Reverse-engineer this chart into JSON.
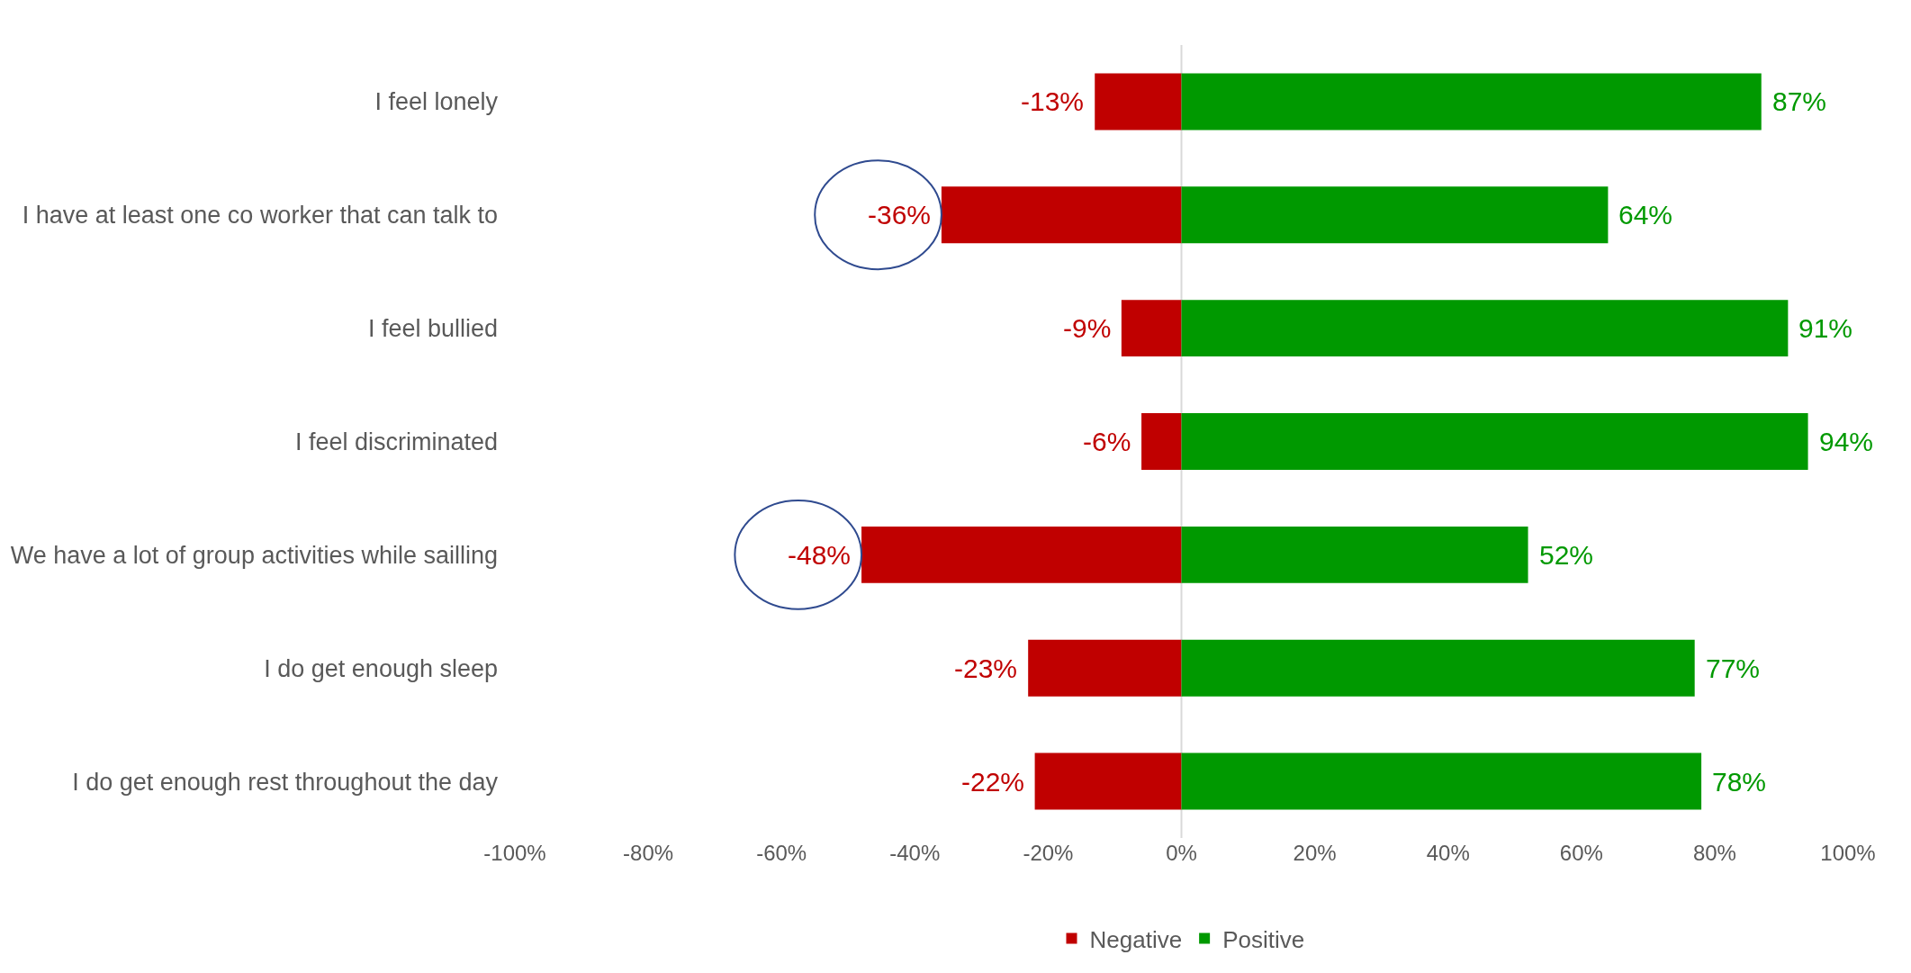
{
  "chart_data": {
    "type": "bar",
    "orientation": "horizontal",
    "stacked": true,
    "categories": [
      "I feel lonely",
      "I have at least one co worker that can talk to",
      "I feel bullied",
      "I feel discriminated",
      "We have a lot of group activities while sailling",
      "I do get enough sleep",
      "I do get enough rest throughout the day"
    ],
    "series": [
      {
        "name": "Negative",
        "color": "#c00000",
        "values": [
          -13,
          -36,
          -9,
          -6,
          -48,
          -23,
          -22
        ],
        "value_labels": [
          "-13%",
          "-36%",
          "-9%",
          "-6%",
          "-48%",
          "-23%",
          "-22%"
        ]
      },
      {
        "name": "Positive",
        "color": "#009900",
        "values": [
          87,
          64,
          91,
          94,
          52,
          77,
          78
        ],
        "value_labels": [
          "87%",
          "64%",
          "91%",
          "94%",
          "52%",
          "77%",
          "78%"
        ]
      }
    ],
    "xlim": [
      -100,
      100
    ],
    "xticks": [
      {
        "value": -100,
        "label": "-100%"
      },
      {
        "value": -80,
        "label": "-80%"
      },
      {
        "value": -60,
        "label": "-60%"
      },
      {
        "value": -40,
        "label": "-40%"
      },
      {
        "value": -20,
        "label": "-20%"
      },
      {
        "value": 0,
        "label": "0%"
      },
      {
        "value": 20,
        "label": "20%"
      },
      {
        "value": 40,
        "label": "40%"
      },
      {
        "value": 60,
        "label": "60%"
      },
      {
        "value": 80,
        "label": "80%"
      },
      {
        "value": 100,
        "label": "100%"
      }
    ],
    "ref_lines": [
      {
        "axis": "x",
        "value": 0,
        "color": "#d9d9d9"
      }
    ],
    "grid": false,
    "legend": "bottom"
  }
}
